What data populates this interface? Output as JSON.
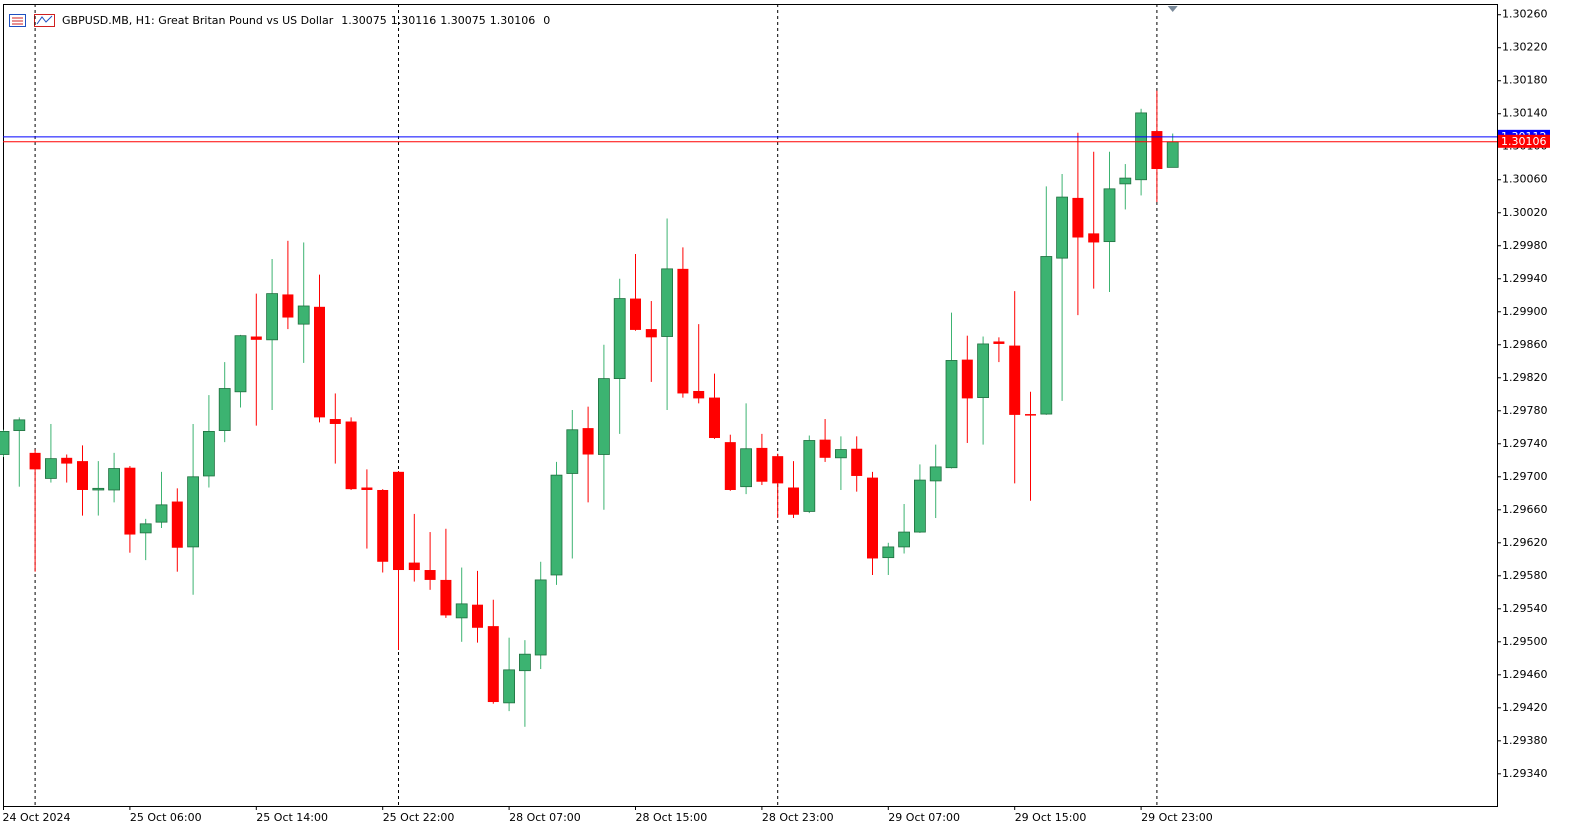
{
  "chart_data": {
    "type": "candlestick",
    "title": "GBPUSD.MB, H1:  Great Britan Pound vs US Dollar",
    "spread": 0,
    "categories": [
      "24 Oct 2024",
      null,
      null,
      null,
      null,
      null,
      null,
      null,
      "25 Oct 06:00",
      null,
      null,
      null,
      null,
      null,
      null,
      null,
      "25 Oct 14:00",
      null,
      null,
      null,
      null,
      null,
      null,
      null,
      "25 Oct 22:00",
      null,
      null,
      null,
      null,
      null,
      null,
      null,
      "28 Oct 07:00",
      null,
      null,
      null,
      null,
      null,
      null,
      null,
      "28 Oct 15:00",
      null,
      null,
      null,
      null,
      null,
      null,
      null,
      "28 Oct 23:00",
      null,
      null,
      null,
      null,
      null,
      null,
      null,
      "29 Oct 07:00",
      null,
      null,
      null,
      null,
      null,
      null,
      null,
      "29 Oct 15:00",
      null,
      null,
      null,
      null,
      null,
      null,
      null,
      "29 Oct 23:00",
      null,
      null
    ],
    "open": [
      1.29727,
      1.29756,
      1.29729,
      1.29698,
      1.29723,
      1.29719,
      1.29684,
      1.29684,
      1.29711,
      1.29632,
      1.29645,
      1.2967,
      1.29615,
      1.29701,
      1.29756,
      1.29803,
      1.2987,
      1.29866,
      1.29921,
      1.29885,
      1.29906,
      1.2977,
      1.29767,
      1.29687,
      1.29684,
      1.29706,
      1.29596,
      1.29587,
      1.29575,
      1.29529,
      1.29545,
      1.29519,
      1.29426,
      1.29465,
      1.29484,
      1.29581,
      1.29704,
      1.29759,
      1.29727,
      1.29819,
      1.29916,
      1.29879,
      1.2987,
      1.29952,
      1.29804,
      1.29796,
      1.29742,
      1.29688,
      1.29735,
      1.29725,
      1.29687,
      1.29658,
      1.29745,
      1.29723,
      1.29734,
      1.29699,
      1.29602,
      1.29615,
      1.29633,
      1.29695,
      1.29711,
      1.29842,
      1.29796,
      1.29864,
      1.29859,
      1.29776,
      1.29776,
      1.29965,
      1.30038,
      1.29995,
      1.29985,
      1.30055,
      1.3006,
      1.30119,
      1.30075
    ],
    "high": [
      1.29757,
      1.29772,
      1.29733,
      1.29764,
      1.29727,
      1.29738,
      1.29719,
      1.29729,
      1.29713,
      1.29649,
      1.29706,
      1.29686,
      1.29764,
      1.29799,
      1.29839,
      1.29872,
      1.29922,
      1.29964,
      1.29986,
      1.29984,
      1.29945,
      1.29801,
      1.29772,
      1.29709,
      1.29685,
      1.29707,
      1.29655,
      1.29633,
      1.29637,
      1.2959,
      1.29586,
      1.29551,
      1.29505,
      1.29502,
      1.29597,
      1.29718,
      1.29781,
      1.29785,
      1.2986,
      1.2994,
      1.2997,
      1.29913,
      1.30013,
      1.29978,
      1.29885,
      1.29825,
      1.29751,
      1.29789,
      1.29752,
      1.29728,
      1.29719,
      1.2975,
      1.2977,
      1.29749,
      1.29749,
      1.29706,
      1.2962,
      1.29667,
      1.29715,
      1.29739,
      1.29899,
      1.29871,
      1.2987,
      1.29869,
      1.29925,
      1.29803,
      1.30052,
      1.30067,
      1.30117,
      1.30094,
      1.30094,
      1.30079,
      1.30146,
      1.30168,
      1.30116
    ],
    "low": [
      1.29724,
      1.29688,
      1.29585,
      1.29693,
      1.29693,
      1.29653,
      1.29653,
      1.29669,
      1.29608,
      1.29599,
      1.29638,
      1.29585,
      1.29557,
      1.29687,
      1.29742,
      1.29784,
      1.29762,
      1.29781,
      1.29879,
      1.29838,
      1.29766,
      1.29716,
      1.29684,
      1.29613,
      1.29584,
      1.2949,
      1.29573,
      1.29563,
      1.29529,
      1.295,
      1.29499,
      1.29425,
      1.29416,
      1.29397,
      1.29467,
      1.29569,
      1.29601,
      1.29669,
      1.2966,
      1.29752,
      1.29877,
      1.29815,
      1.29781,
      1.29796,
      1.29789,
      1.29746,
      1.29683,
      1.29679,
      1.2969,
      1.2965,
      1.2965,
      1.29656,
      1.29718,
      1.29684,
      1.29682,
      1.29581,
      1.29581,
      1.29607,
      1.29632,
      1.2965,
      1.2971,
      1.29741,
      1.29739,
      1.29839,
      1.29692,
      1.29671,
      1.29775,
      1.29792,
      1.29896,
      1.29928,
      1.29924,
      1.30024,
      1.30041,
      1.30033,
      1.30075
    ],
    "close": [
      1.29755,
      1.29769,
      1.29709,
      1.29722,
      1.29716,
      1.29684,
      1.29686,
      1.2971,
      1.2963,
      1.29643,
      1.29666,
      1.29614,
      1.297,
      1.29755,
      1.29807,
      1.29871,
      1.29866,
      1.29922,
      1.29893,
      1.29907,
      1.29772,
      1.29764,
      1.29685,
      1.29684,
      1.29597,
      1.29587,
      1.29587,
      1.29575,
      1.29532,
      1.29546,
      1.29517,
      1.29427,
      1.29466,
      1.29485,
      1.29575,
      1.29702,
      1.29757,
      1.29727,
      1.29819,
      1.29916,
      1.29878,
      1.29869,
      1.29952,
      1.29801,
      1.29795,
      1.29747,
      1.29684,
      1.29734,
      1.29694,
      1.29692,
      1.29654,
      1.29744,
      1.29723,
      1.29733,
      1.29701,
      1.29601,
      1.29615,
      1.29633,
      1.29696,
      1.29712,
      1.29841,
      1.29795,
      1.29861,
      1.29861,
      1.29775,
      1.29775,
      1.29967,
      1.30039,
      1.2999,
      1.29984,
      1.30049,
      1.30062,
      1.30141,
      1.30073,
      1.30106
    ],
    "up_color": "#3cb371",
    "down_color": "#ff0000",
    "ask": 1.30112,
    "ask_color": "#0000ff",
    "bid_color": "#ff0000",
    "ylim": [
      1.29301,
      1.30273
    ],
    "yticks": [
      {
        "value": 1.3026,
        "label": "1.30260"
      },
      {
        "value": 1.3022,
        "label": "1.30220"
      },
      {
        "value": 1.3018,
        "label": "1.30180"
      },
      {
        "value": 1.3014,
        "label": "1.30140"
      },
      {
        "value": 1.301,
        "label": "1.30100"
      },
      {
        "value": 1.3006,
        "label": "1.30060"
      },
      {
        "value": 1.3002,
        "label": "1.30020"
      },
      {
        "value": 1.2998,
        "label": "1.29980"
      },
      {
        "value": 1.2994,
        "label": "1.29940"
      },
      {
        "value": 1.299,
        "label": "1.29900"
      },
      {
        "value": 1.2986,
        "label": "1.29860"
      },
      {
        "value": 1.2982,
        "label": "1.29820"
      },
      {
        "value": 1.2978,
        "label": "1.29780"
      },
      {
        "value": 1.2974,
        "label": "1.29740"
      },
      {
        "value": 1.297,
        "label": "1.29700"
      },
      {
        "value": 1.2966,
        "label": "1.29660"
      },
      {
        "value": 1.2962,
        "label": "1.29620"
      },
      {
        "value": 1.2958,
        "label": "1.29580"
      },
      {
        "value": 1.2954,
        "label": "1.29540"
      },
      {
        "value": 1.295,
        "label": "1.29500"
      },
      {
        "value": 1.2946,
        "label": "1.29460"
      },
      {
        "value": 1.2942,
        "label": "1.29420"
      },
      {
        "value": 1.2938,
        "label": "1.29380"
      },
      {
        "value": 1.2934,
        "label": "1.29340"
      }
    ],
    "grid": false
  }
}
